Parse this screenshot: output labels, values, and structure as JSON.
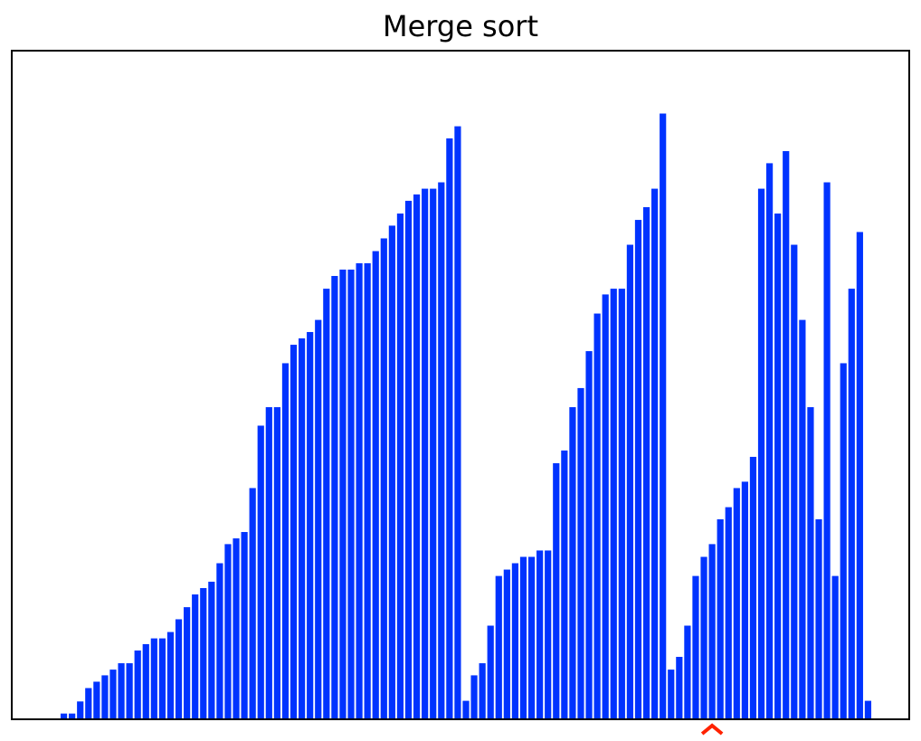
{
  "chart_data": {
    "type": "bar",
    "title": "Merge sort",
    "xlabel": "",
    "ylabel": "",
    "grid": false,
    "bar_color": "#0033ff",
    "marker_color": "#ff2200",
    "marker_index": 80,
    "ylim": [
      0,
      1
    ],
    "values": [
      0,
      0.009,
      0.009,
      0.028,
      0.049,
      0.059,
      0.069,
      0.078,
      0.088,
      0.088,
      0.108,
      0.118,
      0.127,
      0.127,
      0.137,
      0.157,
      0.176,
      0.196,
      0.206,
      0.216,
      0.245,
      0.275,
      0.284,
      0.294,
      0.363,
      0.461,
      0.49,
      0.49,
      0.559,
      0.588,
      0.598,
      0.608,
      0.627,
      0.676,
      0.696,
      0.706,
      0.706,
      0.716,
      0.716,
      0.735,
      0.755,
      0.775,
      0.794,
      0.814,
      0.824,
      0.833,
      0.833,
      0.843,
      0.912,
      0.931,
      0.029,
      0.069,
      0.088,
      0.147,
      0.225,
      0.235,
      0.245,
      0.255,
      0.255,
      0.265,
      0.265,
      0.402,
      0.422,
      0.49,
      0.52,
      0.578,
      0.637,
      0.667,
      0.676,
      0.676,
      0.745,
      0.784,
      0.804,
      0.833,
      0.951,
      0.078,
      0.098,
      0.147,
      0.225,
      0.255,
      0.275,
      0.314,
      0.333,
      0.363,
      0.373,
      0.412,
      0.833,
      0.873,
      0.794,
      0.892,
      0.745,
      0.627,
      0.49,
      0.314,
      0.843,
      0.225,
      0.559,
      0.676,
      0.765,
      0.029
    ]
  }
}
